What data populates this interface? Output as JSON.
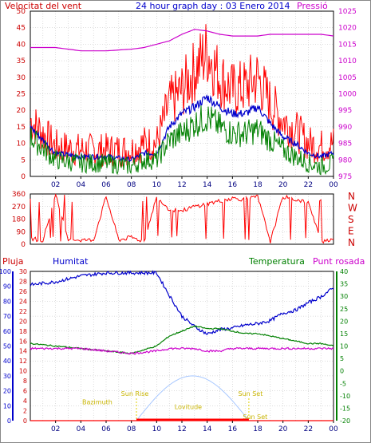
{
  "title": "24 hour graph day : 03 Enero 2014",
  "colors": {
    "red": "#ff0000",
    "blue": "#0000cc",
    "green": "#008000",
    "magenta": "#cc00cc",
    "yellow": "#e0d000",
    "sky": "#a8c8ff",
    "grid": "#bbbbbb"
  },
  "x_ticks": [
    "02",
    "04",
    "06",
    "08",
    "10",
    "12",
    "14",
    "16",
    "18",
    "20",
    "22",
    "00"
  ],
  "chart_data": [
    {
      "type": "line",
      "title": "24 hour graph day : 03 Enero 2014",
      "left_label": "Velocitat del vent",
      "right_label": "Pressió",
      "y_left_ticks": [
        "50",
        "45",
        "40",
        "35",
        "30",
        "25",
        "20",
        "15",
        "10",
        "5",
        "0"
      ],
      "y_right_ticks": [
        "1025",
        "1020",
        "1015",
        "1010",
        "1005",
        "1000",
        "995",
        "990",
        "985",
        "980",
        "975"
      ],
      "ylim_left": [
        0,
        50
      ],
      "ylim_right": [
        975,
        1025
      ],
      "x_hours": [
        0,
        2,
        4,
        6,
        8,
        9,
        10,
        11,
        12,
        13,
        14,
        15,
        16,
        17,
        18,
        19,
        20,
        21,
        22,
        23,
        24
      ],
      "series": [
        {
          "values": [
            17,
            9,
            8,
            8,
            8,
            10,
            10,
            22,
            26,
            32,
            38,
            30,
            26,
            27,
            30,
            22,
            17,
            14,
            10,
            9,
            10
          ]
        },
        {
          "values": [
            15,
            7,
            6,
            6,
            5,
            7,
            7,
            15,
            19,
            21,
            24,
            21,
            19,
            19,
            21,
            16,
            12,
            10,
            7,
            6,
            7
          ]
        },
        {
          "values": [
            12,
            5,
            4,
            4,
            3,
            5,
            5,
            11,
            13,
            16,
            18,
            15,
            13,
            13,
            14,
            11,
            8,
            6,
            4,
            3,
            4
          ]
        },
        {
          "values": [
            1014,
            1014,
            1013,
            1013,
            1013.5,
            1014,
            1015,
            1016,
            1018,
            1019.5,
            1019,
            1018,
            1017.5,
            1017.5,
            1017.5,
            1018,
            1018,
            1018,
            1018,
            1018,
            1017.5
          ]
        }
      ]
    },
    {
      "type": "line",
      "title": "",
      "y_left_ticks": [
        "360",
        "270",
        "180",
        "90",
        "0"
      ],
      "ylim": [
        0,
        360
      ],
      "compass_labels": [
        "N",
        "W",
        "S",
        "E",
        "N"
      ],
      "x_hours": [
        0,
        1,
        2,
        3,
        4,
        5,
        6,
        7,
        8,
        9,
        10,
        11,
        12,
        13,
        14,
        15,
        16,
        17,
        18,
        19,
        20,
        21,
        22,
        23,
        24
      ],
      "series": [
        {
          "values": [
            40,
            30,
            350,
            40,
            30,
            30,
            340,
            30,
            50,
            20,
            340,
            250,
            240,
            270,
            290,
            310,
            330,
            320,
            340,
            20,
            340,
            320,
            300,
            20,
            40
          ]
        }
      ]
    },
    {
      "type": "line",
      "title": "",
      "labels_top": [
        "Pluja",
        "Humitat",
        "Temperatura",
        "Punt rosada"
      ],
      "y_rain_ticks": [
        "30",
        "28",
        "26",
        "24",
        "22",
        "20",
        "18",
        "16",
        "14",
        "12",
        "10",
        "8",
        "6",
        "4",
        "2",
        "0"
      ],
      "y_hum_ticks": [
        "100",
        "90",
        "80",
        "70",
        "60",
        "50",
        "40",
        "30",
        "20",
        "10",
        "0"
      ],
      "y_temp_ticks": [
        "40",
        "35",
        "30",
        "25",
        "20",
        "15",
        "10",
        "5",
        "0",
        "-5",
        "-10",
        "-15",
        "-20"
      ],
      "ylim_humidity": [
        0,
        100
      ],
      "ylim_temp": [
        -20,
        40
      ],
      "ylim_rain": [
        0,
        30
      ],
      "sun_labels": {
        "rise": "Sun Rise",
        "set": "Sun Set",
        "azimuth": "Bazimuth",
        "altitude": "Lovitude"
      },
      "x_hours": [
        0,
        2,
        4,
        6,
        8,
        10,
        11,
        12,
        13,
        14,
        15,
        16,
        17,
        18,
        19,
        20,
        21,
        22,
        23,
        24
      ],
      "series": [
        {
          "values": [
            91,
            93,
            97,
            99,
            99,
            99,
            84,
            70,
            63,
            58,
            61,
            62,
            64,
            65,
            67,
            72,
            74,
            79,
            83,
            89
          ]
        },
        {
          "values": [
            11,
            10,
            9,
            8,
            7,
            10,
            14,
            16,
            18,
            17,
            17,
            16,
            15,
            15,
            14,
            13,
            12,
            11,
            11,
            10
          ]
        },
        {
          "values": [
            9,
            9,
            9,
            8,
            7,
            8,
            9,
            9,
            9,
            8,
            8,
            9,
            9,
            9,
            9,
            9,
            9,
            9,
            9,
            9
          ]
        },
        {
          "values": [
            0,
            0,
            0,
            0,
            0,
            0,
            0,
            0,
            0,
            0,
            0,
            0,
            0,
            0,
            0,
            0,
            0,
            0,
            0,
            0
          ]
        }
      ],
      "sun_rise_hour": 8.4,
      "sun_set_hour": 17.3,
      "sun_max_alt_rain_units": 9
    }
  ]
}
